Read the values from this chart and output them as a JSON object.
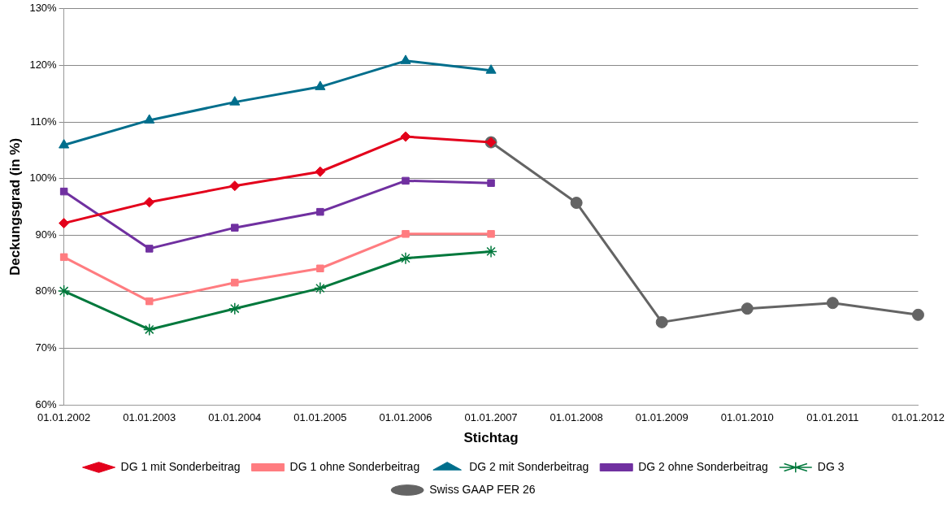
{
  "chart_data": {
    "type": "line",
    "xlabel": "Stichtag",
    "ylabel": "Deckungsgrad (in %)",
    "categories": [
      "01.01.2002",
      "01.01.2003",
      "01.01.2004",
      "01.01.2005",
      "01.01.2006",
      "01.01.2007",
      "01.01.2008",
      "01.01.2009",
      "01.01.2010",
      "01.01.2011",
      "01.01.2012"
    ],
    "ylim": [
      60,
      130
    ],
    "yticks": [
      {
        "value": 60,
        "label": "60%"
      },
      {
        "value": 70,
        "label": "70%"
      },
      {
        "value": 80,
        "label": "80%"
      },
      {
        "value": 90,
        "label": "90%"
      },
      {
        "value": 100,
        "label": "100%"
      },
      {
        "value": 110,
        "label": "110%"
      },
      {
        "value": 120,
        "label": "120%"
      },
      {
        "value": 130,
        "label": "130%"
      }
    ],
    "grid": "y",
    "legend": "bottom",
    "line_style": "solid",
    "series": [
      {
        "name": "DG 1 mit Sonderbeitrag",
        "color": "#e3001b",
        "marker": "diamond",
        "values": [
          92.1,
          95.8,
          98.7,
          101.2,
          107.4,
          106.4,
          null,
          null,
          null,
          null,
          null
        ]
      },
      {
        "name": "DG 1 ohne Sonderbeitrag",
        "color": "#ff7c80",
        "marker": "square",
        "values": [
          86.1,
          78.3,
          81.6,
          84.1,
          90.2,
          90.2,
          null,
          null,
          null,
          null,
          null
        ]
      },
      {
        "name": "DG 2 mit Sonderbeitrag",
        "color": "#006e8c",
        "marker": "triangle",
        "values": [
          105.9,
          110.3,
          113.5,
          116.2,
          120.8,
          119.1,
          null,
          null,
          null,
          null,
          null
        ]
      },
      {
        "name": "DG 2 ohne Sonderbeitrag",
        "color": "#7030a0",
        "marker": "square",
        "values": [
          97.7,
          87.6,
          91.3,
          94.1,
          99.6,
          99.2,
          null,
          null,
          null,
          null,
          null
        ]
      },
      {
        "name": "DG 3",
        "color": "#00783c",
        "marker": "cross",
        "values": [
          80.1,
          73.3,
          77.0,
          80.6,
          85.9,
          87.1,
          null,
          null,
          null,
          null,
          null
        ]
      },
      {
        "name": "Swiss GAAP FER 26",
        "color": "#646464",
        "marker": "circle",
        "values": [
          null,
          null,
          null,
          null,
          null,
          106.4,
          95.7,
          74.6,
          77.0,
          78.0,
          75.9
        ]
      }
    ]
  }
}
